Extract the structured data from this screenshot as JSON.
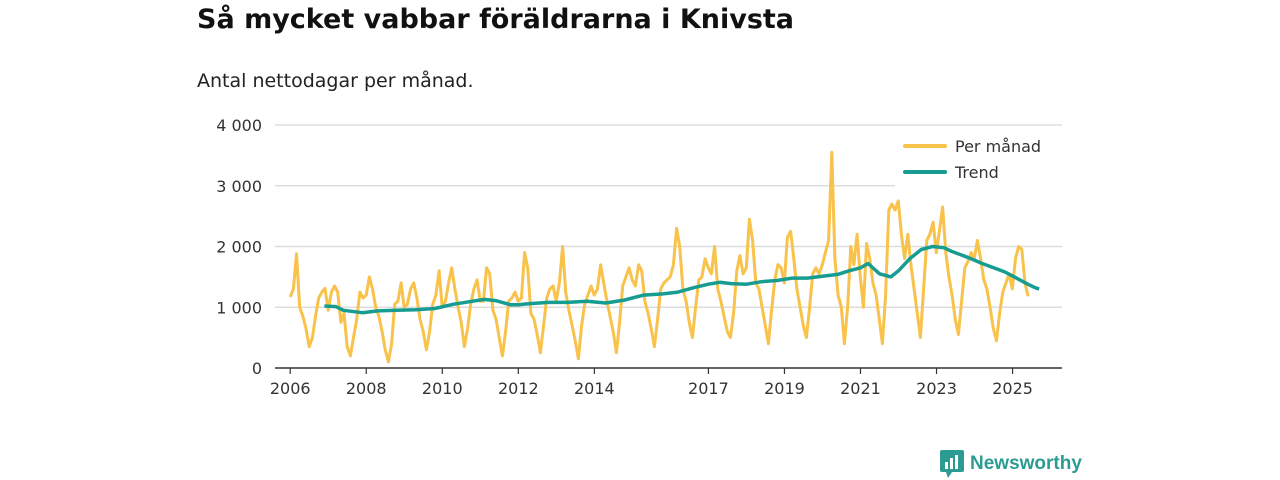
{
  "chart_data": {
    "type": "line",
    "title": "Så mycket vabbar föräldrarna i Knivsta",
    "subtitle": "Antal nettodagar per månad.",
    "xlabel": "",
    "ylabel": "",
    "ylim": [
      0,
      4000
    ],
    "y_ticks": [
      0,
      1000,
      2000,
      3000,
      4000
    ],
    "y_tick_labels": [
      "0",
      "1 000",
      "2 000",
      "3 000",
      "4 000"
    ],
    "x_ticks": [
      2006,
      2008,
      2010,
      2012,
      2014,
      2017,
      2019,
      2021,
      2023,
      2025
    ],
    "x_range": [
      2005.6,
      2026.3
    ],
    "legend": {
      "position": "top-right",
      "entries": [
        "Per månad",
        "Trend"
      ]
    },
    "colors": {
      "per_manad": "#f9c24a",
      "trend": "#179c92",
      "grid": "#dddddd",
      "axis": "#333333"
    },
    "series": [
      {
        "name": "Per månad",
        "x_start": 2006.0,
        "step": 0.0833,
        "values": [
          1170,
          1300,
          1880,
          1000,
          850,
          650,
          350,
          500,
          850,
          1150,
          1250,
          1310,
          950,
          1250,
          1350,
          1250,
          750,
          900,
          350,
          200,
          500,
          800,
          1250,
          1150,
          1200,
          1500,
          1300,
          1000,
          850,
          600,
          300,
          100,
          400,
          1050,
          1100,
          1400,
          1000,
          1050,
          1300,
          1400,
          1150,
          800,
          600,
          300,
          600,
          1050,
          1200,
          1600,
          1000,
          1100,
          1400,
          1650,
          1300,
          1000,
          750,
          350,
          650,
          1050,
          1300,
          1450,
          1100,
          1100,
          1650,
          1550,
          950,
          800,
          500,
          200,
          600,
          1100,
          1150,
          1250,
          1100,
          1150,
          1900,
          1650,
          900,
          800,
          550,
          250,
          700,
          1150,
          1300,
          1350,
          1100,
          1400,
          2000,
          1250,
          950,
          700,
          450,
          150,
          700,
          1050,
          1200,
          1350,
          1200,
          1300,
          1700,
          1400,
          1100,
          850,
          600,
          250,
          750,
          1350,
          1500,
          1650,
          1450,
          1350,
          1700,
          1600,
          1100,
          900,
          650,
          350,
          800,
          1300,
          1400,
          1450,
          1500,
          1700,
          2300,
          2000,
          1300,
          1100,
          750,
          500,
          1000,
          1450,
          1500,
          1800,
          1650,
          1550,
          2000,
          1300,
          1100,
          850,
          600,
          500,
          900,
          1600,
          1850,
          1550,
          1650,
          2450,
          2100,
          1400,
          1300,
          1000,
          700,
          400,
          950,
          1450,
          1700,
          1650,
          1400,
          2150,
          2250,
          1800,
          1300,
          1000,
          700,
          500,
          1000,
          1550,
          1650,
          1550,
          1700,
          1900,
          2100,
          3550,
          1800,
          1200,
          1000,
          400,
          1000,
          2000,
          1700,
          2200,
          1500,
          1000,
          2050,
          1800,
          1400,
          1200,
          800,
          400,
          1200,
          2600,
          2700,
          2600,
          2750,
          2200,
          1800,
          2200,
          1700,
          1300,
          900,
          500,
          1300,
          2100,
          2200,
          2400,
          1900,
          2250,
          2650,
          1900,
          1500,
          1200,
          800,
          550,
          1100,
          1650,
          1750,
          1900,
          1800,
          2100,
          1800,
          1450,
          1300,
          1000,
          650,
          450,
          900,
          1250,
          1400,
          1550,
          1300,
          1800,
          2000,
          1950,
          1400,
          1180
        ]
      },
      {
        "name": "Trend",
        "points": [
          [
            2006.9,
            1020
          ],
          [
            2007.2,
            1010
          ],
          [
            2007.4,
            950
          ],
          [
            2007.9,
            910
          ],
          [
            2008.3,
            940
          ],
          [
            2008.8,
            950
          ],
          [
            2009.3,
            960
          ],
          [
            2009.8,
            980
          ],
          [
            2010.3,
            1050
          ],
          [
            2010.8,
            1100
          ],
          [
            2011.1,
            1130
          ],
          [
            2011.4,
            1110
          ],
          [
            2011.8,
            1040
          ],
          [
            2012.0,
            1040
          ],
          [
            2012.3,
            1060
          ],
          [
            2012.8,
            1080
          ],
          [
            2013.3,
            1080
          ],
          [
            2013.8,
            1100
          ],
          [
            2014.3,
            1070
          ],
          [
            2014.8,
            1120
          ],
          [
            2015.3,
            1200
          ],
          [
            2015.8,
            1220
          ],
          [
            2016.2,
            1250
          ],
          [
            2016.6,
            1320
          ],
          [
            2017.0,
            1380
          ],
          [
            2017.3,
            1410
          ],
          [
            2017.6,
            1390
          ],
          [
            2018.0,
            1380
          ],
          [
            2018.4,
            1420
          ],
          [
            2018.8,
            1440
          ],
          [
            2019.2,
            1480
          ],
          [
            2019.6,
            1480
          ],
          [
            2020.0,
            1510
          ],
          [
            2020.4,
            1540
          ],
          [
            2020.7,
            1600
          ],
          [
            2021.0,
            1650
          ],
          [
            2021.2,
            1720
          ],
          [
            2021.5,
            1550
          ],
          [
            2021.8,
            1500
          ],
          [
            2022.0,
            1600
          ],
          [
            2022.3,
            1800
          ],
          [
            2022.6,
            1950
          ],
          [
            2022.9,
            2000
          ],
          [
            2023.2,
            1980
          ],
          [
            2023.4,
            1920
          ],
          [
            2023.7,
            1850
          ],
          [
            2023.9,
            1800
          ],
          [
            2024.2,
            1720
          ],
          [
            2024.5,
            1650
          ],
          [
            2024.8,
            1580
          ],
          [
            2025.1,
            1480
          ],
          [
            2025.4,
            1380
          ],
          [
            2025.6,
            1320
          ],
          [
            2025.7,
            1300
          ]
        ]
      }
    ]
  },
  "brand": {
    "name": "Newsworthy"
  }
}
